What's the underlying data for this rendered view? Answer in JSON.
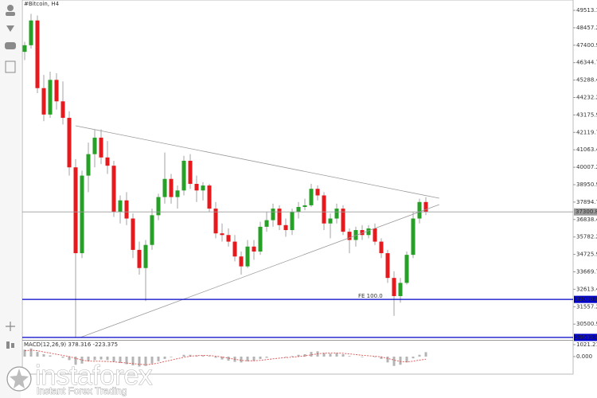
{
  "chart_data": {
    "type": "candlestick",
    "title": "#Bitcoin, H4",
    "up_color": "#26a026",
    "down_color": "#e8191c",
    "open": [
      47000,
      47400,
      48900,
      44800,
      43200,
      45300,
      44000,
      43000,
      40000,
      34800,
      39500,
      40800,
      41800,
      40600,
      40100,
      37300,
      38000,
      36900,
      35000,
      33900,
      35300,
      37100,
      38200,
      39300,
      38200,
      38600,
      40400,
      39000,
      38600,
      38900,
      37500,
      36000,
      35900,
      35500,
      34600,
      34000,
      35200,
      34900,
      36400,
      36800,
      37500,
      36500,
      36200,
      37300,
      37600,
      37700,
      38700,
      38300,
      36600,
      36900,
      37500,
      36100,
      35600,
      36200,
      35900,
      36300,
      35500,
      34800,
      33300,
      32200,
      33000,
      34700,
      36900,
      37900
    ],
    "high": [
      47600,
      49300,
      49200,
      45600,
      45800,
      45700,
      45200,
      43400,
      40500,
      39800,
      41500,
      42300,
      42300,
      41600,
      40400,
      38300,
      38500,
      37200,
      35500,
      35600,
      37500,
      38400,
      40900,
      39600,
      38900,
      40700,
      40800,
      39500,
      39100,
      39000,
      37900,
      36600,
      36300,
      35900,
      34900,
      35600,
      35600,
      36700,
      37300,
      37800,
      37700,
      36900,
      37500,
      37900,
      38100,
      39000,
      38900,
      38500,
      37200,
      37800,
      37700,
      36300,
      36400,
      36500,
      36500,
      36600,
      35700,
      35000,
      33700,
      33300,
      34900,
      37300,
      38100,
      38200
    ],
    "low": [
      46500,
      47200,
      44500,
      42800,
      43000,
      43500,
      42600,
      39500,
      29700,
      34500,
      38500,
      40000,
      40200,
      39600,
      37000,
      36600,
      36500,
      34500,
      33500,
      31900,
      35000,
      36800,
      37800,
      37800,
      37500,
      38300,
      38700,
      37900,
      38000,
      37300,
      35700,
      35500,
      35200,
      34300,
      33500,
      33900,
      34400,
      34700,
      36100,
      36400,
      36200,
      35800,
      35900,
      36900,
      37400,
      37600,
      38000,
      36200,
      35700,
      36600,
      35900,
      34800,
      35200,
      35600,
      35700,
      35300,
      34500,
      33000,
      31000,
      31800,
      32900,
      34500,
      36600,
      37100
    ],
    "close": [
      47400,
      48900,
      44800,
      43200,
      45300,
      44000,
      43000,
      40000,
      34800,
      39500,
      40800,
      41800,
      40600,
      40100,
      37300,
      38000,
      36900,
      35000,
      33900,
      35300,
      37100,
      38200,
      39300,
      38200,
      38600,
      40400,
      39000,
      38600,
      38900,
      37500,
      36000,
      35900,
      35500,
      34600,
      34000,
      35200,
      34900,
      36400,
      36800,
      37500,
      36500,
      36200,
      37300,
      37600,
      37700,
      38700,
      38300,
      36600,
      36900,
      37500,
      36100,
      35600,
      36200,
      35900,
      36300,
      35500,
      34800,
      33300,
      32200,
      33000,
      34700,
      36900,
      37900,
      37300.82
    ],
    "ylim": [
      29546,
      50140
    ],
    "yticks": [
      49513.15,
      {
        "value": 48457.2,
        "label": "48457.20"
      },
      {
        "value": 47400.95,
        "label": "47400.95"
      },
      {
        "value": 46344.7,
        "label": "46344.70"
      },
      {
        "value": 45288.45,
        "label": "45288.45"
      },
      {
        "value": 44232.2,
        "label": "44232.20"
      },
      43175.95,
      {
        "value": 42119.7,
        "label": "42119.70"
      },
      41063.45,
      {
        "value": 40007.2,
        "label": "40007.20"
      },
      38950.95,
      {
        "value": 37894.7,
        "label": "37894.70"
      },
      36838.45,
      {
        "value": 35782.2,
        "label": "35782.20"
      },
      34725.95,
      {
        "value": 33669.7,
        "label": "33669.70"
      },
      32613.45,
      {
        "value": 31557.2,
        "label": "31557.20"
      },
      30500.95
    ],
    "price_lines": [
      {
        "value": 37300.82,
        "color": "#9a9a9a"
      },
      {
        "value": 32000,
        "label": "32000.00",
        "color": "#0000c8",
        "annotation": "FE 100.0"
      },
      {
        "value": 29695.56,
        "color": "#0000c8"
      }
    ],
    "trendlines": [
      {
        "x": [
          8,
          65.1
        ],
        "y": [
          42520,
          38130
        ]
      },
      {
        "x": [
          8.75,
          65.1
        ],
        "y": [
          29695.56,
          37745
        ]
      }
    ],
    "macd": {
      "label": "MACD(12,26,9) 378.316 -223.375",
      "hist_color": "#b4b4b4",
      "signal_color": "#e05050",
      "ylim": [
        -1500,
        1360
      ],
      "yticks": [
        1021.213,
        {
          "value": 0,
          "label": "0.000"
        }
      ],
      "histogram": [
        600,
        700,
        400,
        200,
        100,
        0,
        -100,
        -300,
        -700,
        -600,
        -400,
        -300,
        -250,
        -300,
        -450,
        -550,
        -650,
        -750,
        -850,
        -800,
        -600,
        -400,
        -200,
        -50,
        0,
        150,
        150,
        100,
        100,
        50,
        -100,
        -250,
        -350,
        -450,
        -500,
        -400,
        -350,
        -200,
        -100,
        0,
        0,
        -50,
        50,
        150,
        200,
        400,
        450,
        300,
        250,
        300,
        200,
        50,
        0,
        -50,
        0,
        -50,
        -200,
        -500,
        -800,
        -700,
        -500,
        -150,
        150,
        378.316
      ],
      "signal": [
        500,
        550,
        500,
        400,
        300,
        200,
        100,
        0,
        -150,
        -300,
        -380,
        -400,
        -400,
        -420,
        -450,
        -500,
        -550,
        -600,
        -650,
        -700,
        -650,
        -550,
        -420,
        -300,
        -180,
        -60,
        30,
        80,
        100,
        90,
        40,
        -40,
        -130,
        -230,
        -320,
        -360,
        -360,
        -320,
        -260,
        -190,
        -130,
        -90,
        -50,
        0,
        60,
        150,
        240,
        290,
        300,
        300,
        280,
        230,
        170,
        110,
        70,
        30,
        -30,
        -150,
        -300,
        -420,
        -450,
        -400,
        -300,
        -223.375
      ]
    }
  },
  "watermark": {
    "brand": "instaforex",
    "tagline": "Instant Forex Trading"
  }
}
